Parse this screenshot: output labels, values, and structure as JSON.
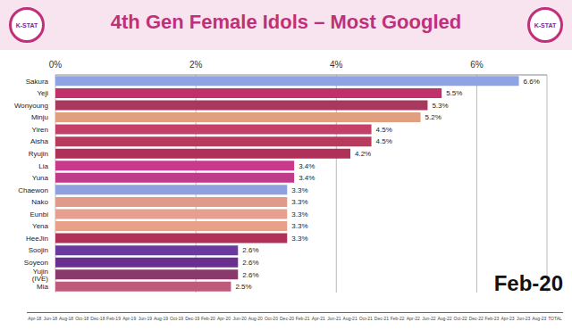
{
  "chart_data": {
    "type": "bar",
    "title": "4th Gen Female Idols – Most Googled",
    "orientation": "horizontal",
    "categories": [
      "Sakura",
      "Yeji",
      "Wonyoung",
      "Minju",
      "Yiren",
      "Aisha",
      "Ryujin",
      "Lia",
      "Yuna",
      "Chaewon",
      "Nako",
      "Eunbi",
      "Yena",
      "HeeJin",
      "Soojin",
      "Soyeon",
      "Yujin (IVE)",
      "Mia"
    ],
    "values": [
      6.6,
      5.5,
      5.3,
      5.2,
      4.5,
      4.5,
      4.2,
      3.4,
      3.4,
      3.3,
      3.3,
      3.3,
      3.3,
      3.3,
      2.6,
      2.6,
      2.6,
      2.5
    ],
    "value_labels": [
      "6.6%",
      "5.5%",
      "5.3%",
      "5.2%",
      "4.5%",
      "4.5%",
      "4.2%",
      "3.4%",
      "3.4%",
      "3.3%",
      "3.3%",
      "3.3%",
      "3.3%",
      "3.3%",
      "2.6%",
      "2.6%",
      "2.6%",
      "2.5%"
    ],
    "colors": [
      "#8ea3e6",
      "#c0306a",
      "#a8385e",
      "#e0a080",
      "#c4406a",
      "#b83a5c",
      "#b0305a",
      "#c93a8c",
      "#c03a8a",
      "#8fa0e0",
      "#e09a8a",
      "#e6a090",
      "#e8a088",
      "#b0305a",
      "#6a3aa0",
      "#6a2e8e",
      "#8a3a6a",
      "#c05a7a"
    ],
    "xlim": [
      0,
      7
    ],
    "xticks": [
      {
        "value": 0,
        "label": "0%"
      },
      {
        "value": 2,
        "label": "2%"
      },
      {
        "value": 4,
        "label": "4%"
      },
      {
        "value": 6,
        "label": "6%"
      }
    ],
    "grid": true,
    "data_labels": true,
    "annotations": {
      "date": "Feb-20",
      "logo": "K-STAT",
      "timeline": [
        "Apr-18",
        "Jun-18",
        "Aug-18",
        "Oct-18",
        "Dec-18",
        "Feb-19",
        "Apr-19",
        "Jun-19",
        "Aug-19",
        "Oct-19",
        "Dec-19",
        "Feb-20",
        "Apr-20",
        "Jun-20",
        "Aug-20",
        "Oct-20",
        "Dec-20",
        "Feb-21",
        "Apr-21",
        "Jun-21",
        "Aug-21",
        "Oct-21",
        "Dec-21",
        "Feb-22",
        "Apr-22",
        "Jun-22",
        "Aug-22",
        "Oct-22",
        "Dec-22",
        "Feb-23",
        "Apr-23",
        "Jun-23",
        "Aug-23",
        "TOTAL"
      ]
    }
  }
}
